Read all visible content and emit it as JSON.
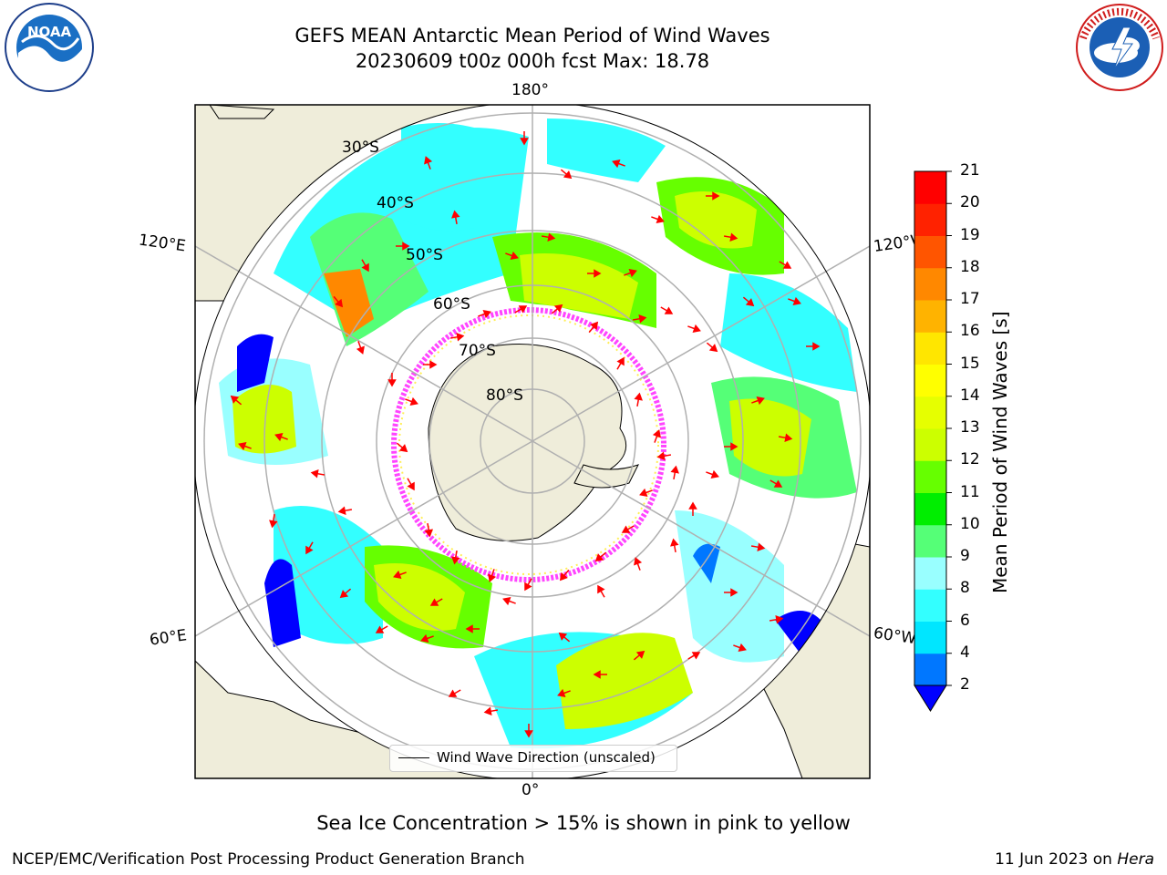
{
  "header": {
    "title_line1": "GEFS MEAN Antarctic Mean Period of Wind Waves",
    "title_line2": "20230609 t00z 000h fcst   Max: 18.78"
  },
  "logos": {
    "noaa": {
      "text": "NOAA",
      "ring_text": "NATIONAL OCEANIC AND ATMOSPHERIC ADMINISTRATION · U.S. DEPARTMENT OF COMMERCE"
    },
    "nws": {
      "ring_text": "NATIONAL WEATHER SERVICE"
    }
  },
  "map": {
    "projection": "south-polar-stereographic",
    "longitude_labels": {
      "top": "180°",
      "bottom": "0°",
      "left_upper": "120°E",
      "left_lower": "60°E",
      "right_upper": "120°W",
      "right_lower": "60°W"
    },
    "latitude_labels": [
      "30°S",
      "40°S",
      "50°S",
      "60°S",
      "70°S",
      "80°S"
    ],
    "legend_label": "Wind Wave Direction (unscaled)",
    "colors": {
      "land": "#efedda",
      "ocean_low": "#0000ff",
      "sea_ice": "#ff44ff",
      "arrow": "#ff0000",
      "grid": "#b0b0b0"
    }
  },
  "colorbar": {
    "label": "Mean Period of Wind Waves [s]",
    "ticks": [
      "2",
      "4",
      "6",
      "8",
      "9",
      "10",
      "11",
      "12",
      "13",
      "14",
      "15",
      "16",
      "17",
      "18",
      "19",
      "20",
      "21"
    ],
    "colors": [
      "#0077ff",
      "#00e6ff",
      "#33ffff",
      "#99ffff",
      "#55ff77",
      "#00ee00",
      "#66ff00",
      "#ccff00",
      "#e6ff00",
      "#ffff00",
      "#ffe600",
      "#ffb300",
      "#ff8800",
      "#ff5500",
      "#ff2200",
      "#ff0000"
    ],
    "extend_color": "#0000ff"
  },
  "notes": {
    "sea_ice": "Sea Ice Concentration > 15% is shown in pink to yellow"
  },
  "footer": {
    "left": "NCEP/EMC/Verification Post Processing Product Generation Branch",
    "right_prefix": "11 Jun 2023 on ",
    "right_host": "Hera"
  }
}
